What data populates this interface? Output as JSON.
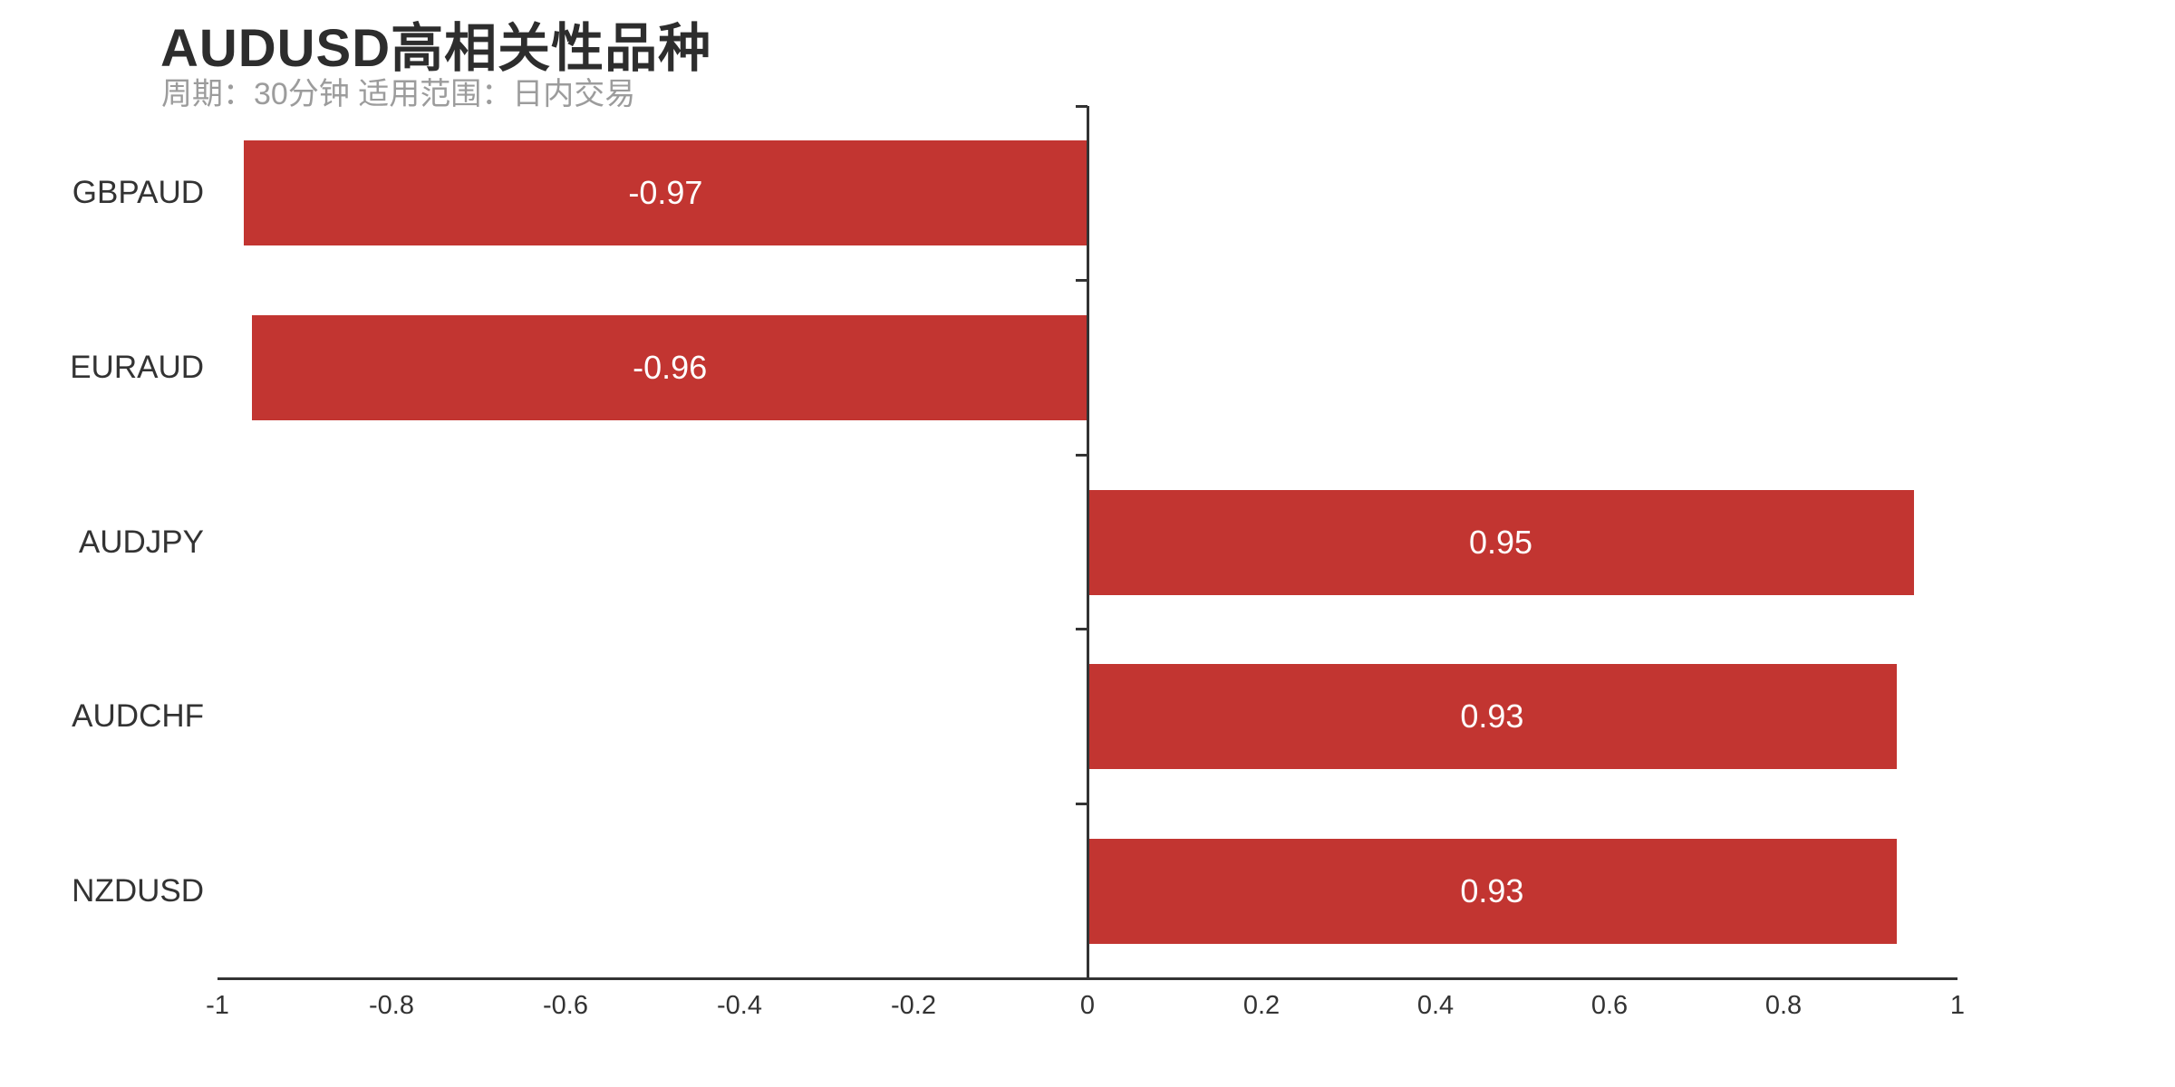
{
  "header": {
    "title": "AUDUSD高相关性品种",
    "subtitle": "周期：30分钟 适用范围：日内交易"
  },
  "chart_data": {
    "type": "bar",
    "orientation": "horizontal",
    "title": "AUDUSD高相关性品种",
    "subtitle": "周期：30分钟 适用范围：日内交易",
    "categories": [
      "GBPAUD",
      "EURAUD",
      "AUDJPY",
      "AUDCHF",
      "NZDUSD"
    ],
    "values": [
      -0.97,
      -0.96,
      0.95,
      0.93,
      0.93
    ],
    "value_labels": [
      "-0.97",
      "-0.96",
      "0.95",
      "0.93",
      "0.93"
    ],
    "xlim": [
      -1,
      1
    ],
    "xticks": [
      -1,
      -0.8,
      -0.6,
      -0.4,
      -0.2,
      0,
      0.2,
      0.4,
      0.6,
      0.8,
      1
    ],
    "bar_color": "#c23531",
    "value_label_color": "#ffffff",
    "axis_color": "#333333",
    "tick_label_color": "#333333",
    "category_label_color": "#333333",
    "grid": false,
    "legend": false,
    "value_label_position": "inside-center",
    "category_axis_on_zero": true
  }
}
